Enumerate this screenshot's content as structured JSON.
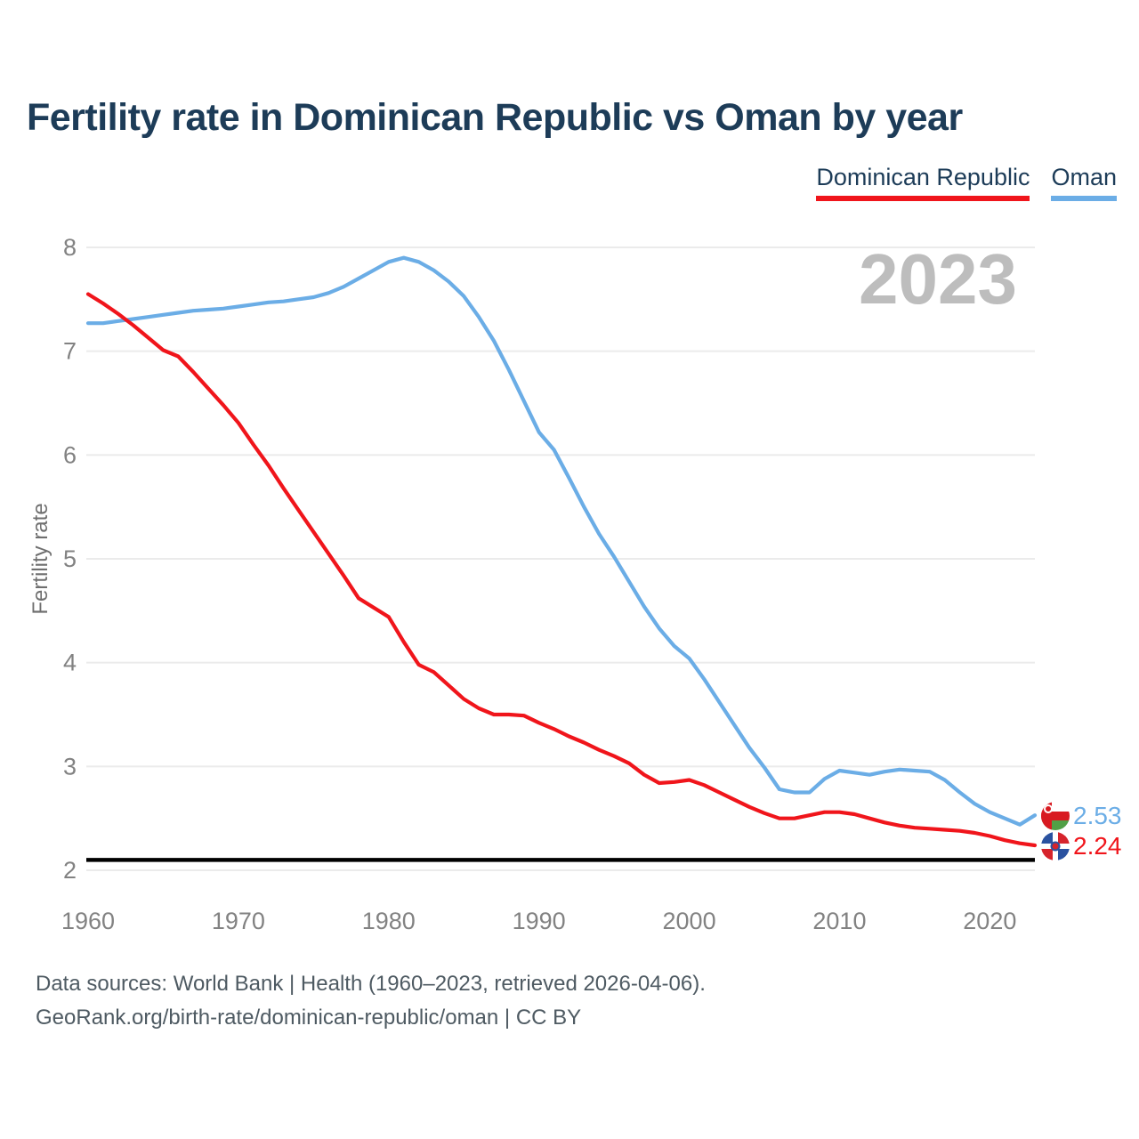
{
  "title": "Fertility rate in Dominican Republic vs Oman by year",
  "watermark_year": "2023",
  "ylabel": "Fertility rate",
  "legend": {
    "items": [
      {
        "label": "Dominican Republic",
        "color": "#f0151b"
      },
      {
        "label": "Oman",
        "color": "#6bade6"
      }
    ]
  },
  "chart_data": {
    "type": "line",
    "title": "Fertility rate in Dominican Republic vs Oman by year",
    "xlabel": "",
    "ylabel": "Fertility rate",
    "xlim": [
      1960,
      2023
    ],
    "ylim": [
      2,
      8
    ],
    "xticks": [
      1960,
      1970,
      1980,
      1990,
      2000,
      2010,
      2020
    ],
    "yticks": [
      2,
      3,
      4,
      5,
      6,
      7,
      8
    ],
    "grid": "horizontal",
    "legend_position": "top-right",
    "x": [
      1960,
      1961,
      1962,
      1963,
      1964,
      1965,
      1966,
      1967,
      1968,
      1969,
      1970,
      1971,
      1972,
      1973,
      1974,
      1975,
      1976,
      1977,
      1978,
      1979,
      1980,
      1981,
      1982,
      1983,
      1984,
      1985,
      1986,
      1987,
      1988,
      1989,
      1990,
      1991,
      1992,
      1993,
      1994,
      1995,
      1996,
      1997,
      1998,
      1999,
      2000,
      2001,
      2002,
      2003,
      2004,
      2005,
      2006,
      2007,
      2008,
      2009,
      2010,
      2011,
      2012,
      2013,
      2014,
      2015,
      2016,
      2017,
      2018,
      2019,
      2020,
      2021,
      2022,
      2023
    ],
    "series": [
      {
        "name": "Oman",
        "color": "#6bade6",
        "values": [
          7.27,
          7.27,
          7.29,
          7.31,
          7.33,
          7.35,
          7.37,
          7.39,
          7.4,
          7.41,
          7.43,
          7.45,
          7.47,
          7.48,
          7.5,
          7.52,
          7.56,
          7.62,
          7.7,
          7.78,
          7.86,
          7.9,
          7.86,
          7.78,
          7.67,
          7.53,
          7.33,
          7.1,
          6.82,
          6.52,
          6.22,
          6.05,
          5.78,
          5.5,
          5.24,
          5.02,
          4.78,
          4.54,
          4.33,
          4.16,
          4.04,
          3.84,
          3.62,
          3.4,
          3.18,
          2.99,
          2.78,
          2.75,
          2.75,
          2.88,
          2.96,
          2.94,
          2.92,
          2.95,
          2.97,
          2.96,
          2.95,
          2.87,
          2.75,
          2.64,
          2.56,
          2.5,
          2.44,
          2.53
        ]
      },
      {
        "name": "Dominican Republic",
        "color": "#f0151b",
        "values": [
          7.55,
          7.46,
          7.36,
          7.25,
          7.13,
          7.01,
          6.95,
          6.8,
          6.64,
          6.48,
          6.31,
          6.1,
          5.9,
          5.68,
          5.47,
          5.26,
          5.05,
          4.84,
          4.62,
          4.53,
          4.44,
          4.2,
          3.98,
          3.91,
          3.78,
          3.65,
          3.56,
          3.5,
          3.5,
          3.49,
          3.42,
          3.36,
          3.29,
          3.23,
          3.16,
          3.1,
          3.03,
          2.92,
          2.84,
          2.85,
          2.87,
          2.82,
          2.75,
          2.68,
          2.61,
          2.55,
          2.5,
          2.5,
          2.53,
          2.56,
          2.56,
          2.54,
          2.5,
          2.46,
          2.43,
          2.41,
          2.4,
          2.39,
          2.38,
          2.36,
          2.33,
          2.29,
          2.26,
          2.24
        ]
      }
    ],
    "reference_line": {
      "value": 2.1,
      "color": "#000000"
    },
    "end_labels": [
      {
        "series": "Oman",
        "value": "2.53",
        "color": "#6bade6"
      },
      {
        "series": "Dominican Republic",
        "value": "2.24",
        "color": "#f0151b"
      }
    ]
  },
  "footer": {
    "line1": "Data sources: World Bank | Health (1960–2023, retrieved 2026-04-06).",
    "line2": "GeoRank.org/birth-rate/dominican-republic/oman | CC BY"
  }
}
